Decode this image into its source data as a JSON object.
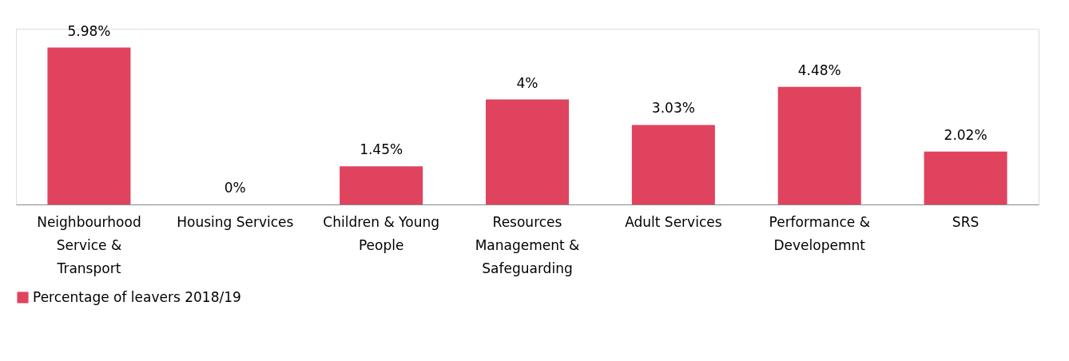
{
  "chart_data": {
    "type": "bar",
    "categories": [
      "Neighbourhood Service & Transport",
      "Housing Services",
      "Children & Young People",
      "Resources Management & Safeguarding",
      "Adult Services",
      "Performance & Developemnt",
      "SRS"
    ],
    "series": [
      {
        "name": "Percentage of leavers 2018/19",
        "color": "#e0435e",
        "values": [
          5.98,
          0,
          1.45,
          4,
          3.03,
          4.48,
          2.02
        ],
        "value_labels": [
          "5.98%",
          "0%",
          "1.45%",
          "4%",
          "3.03%",
          "4.48%",
          "2.02%"
        ]
      }
    ],
    "legend": "bottom",
    "grid": false
  }
}
